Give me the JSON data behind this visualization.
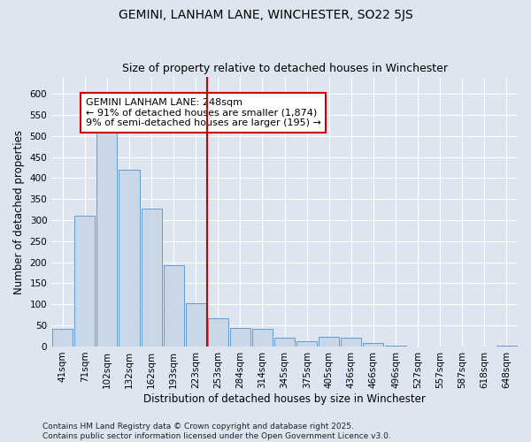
{
  "title": "GEMINI, LANHAM LANE, WINCHESTER, SO22 5JS",
  "subtitle": "Size of property relative to detached houses in Winchester",
  "xlabel": "Distribution of detached houses by size in Winchester",
  "ylabel": "Number of detached properties",
  "categories": [
    "41sqm",
    "71sqm",
    "102sqm",
    "132sqm",
    "162sqm",
    "193sqm",
    "223sqm",
    "253sqm",
    "284sqm",
    "314sqm",
    "345sqm",
    "375sqm",
    "405sqm",
    "436sqm",
    "466sqm",
    "496sqm",
    "527sqm",
    "557sqm",
    "587sqm",
    "618sqm",
    "648sqm"
  ],
  "values": [
    42,
    310,
    510,
    420,
    328,
    192,
    103,
    67,
    45,
    42,
    20,
    12,
    22,
    20,
    8,
    2,
    0,
    0,
    0,
    0,
    2
  ],
  "bar_color": "#c8d8e8",
  "bar_edge_color": "#6699cc",
  "vline_index": 7,
  "vline_color": "#cc0000",
  "annotation_text": "GEMINI LANHAM LANE: 248sqm\n← 91% of detached houses are smaller (1,874)\n9% of semi-detached houses are larger (195) →",
  "annotation_box_color": "#ffffff",
  "annotation_box_edge": "#cc0000",
  "ylim": [
    0,
    640
  ],
  "yticks": [
    0,
    50,
    100,
    150,
    200,
    250,
    300,
    350,
    400,
    450,
    500,
    550,
    600
  ],
  "background_color": "#dde5f0",
  "grid_color": "#ffffff",
  "footer_text": "Contains HM Land Registry data © Crown copyright and database right 2025.\nContains public sector information licensed under the Open Government Licence v3.0.",
  "title_fontsize": 10,
  "subtitle_fontsize": 9,
  "axis_label_fontsize": 8.5,
  "tick_fontsize": 7.5,
  "annotation_fontsize": 8
}
